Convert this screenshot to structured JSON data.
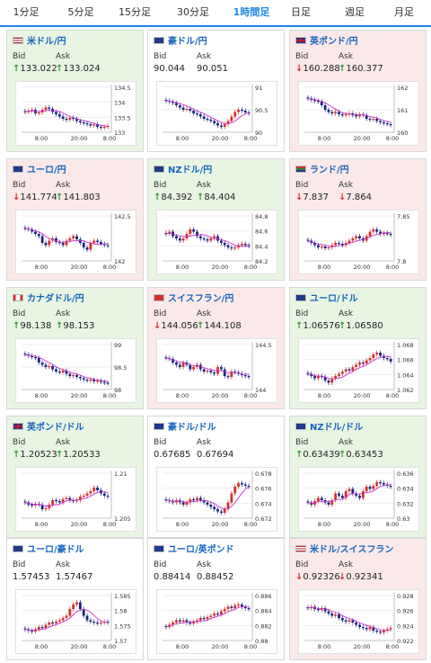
{
  "tabs": [
    {
      "label": "1分足",
      "active": false
    },
    {
      "label": "5分足",
      "active": false
    },
    {
      "label": "15分足",
      "active": false
    },
    {
      "label": "30分足",
      "active": false
    },
    {
      "label": "1時間足",
      "active": true
    },
    {
      "label": "日足",
      "active": false
    },
    {
      "label": "週足",
      "active": false
    },
    {
      "label": "月足",
      "active": false
    }
  ],
  "labels": {
    "bid": "Bid",
    "ask": "Ask"
  },
  "colors": {
    "up": "#2e9e2e",
    "down": "#d32f2f",
    "accent": "#1e88e5",
    "ma": "#cc33cc"
  },
  "pairs": [
    {
      "name": "米ドル/円",
      "flag": "flag-us-icon",
      "trend": "up",
      "bid_dir": "up",
      "bid": "133.022",
      "ask_dir": "up",
      "ask": "133.024",
      "yticks": [
        "134.5",
        "134",
        "133.5",
        "133"
      ],
      "xticks": [
        "8:00",
        "20:00",
        "8:00"
      ],
      "series": [
        0.45,
        0.48,
        0.5,
        0.42,
        0.44,
        0.5,
        0.55,
        0.52,
        0.45,
        0.4,
        0.35,
        0.3,
        0.28,
        0.32,
        0.3,
        0.25,
        0.22,
        0.2,
        0.18,
        0.15,
        0.17,
        0.12,
        0.1,
        0.12,
        0.14
      ]
    },
    {
      "name": "豪ドル/円",
      "flag": "flag-au-icon",
      "trend": "flat",
      "bid_dir": "",
      "bid": "90.044",
      "ask_dir": "",
      "ask": "90.051",
      "yticks": [
        "91",
        "90.5",
        "90"
      ],
      "xticks": [
        "8:00",
        "20:00",
        "8:00"
      ],
      "series": [
        0.7,
        0.68,
        0.65,
        0.6,
        0.55,
        0.5,
        0.52,
        0.48,
        0.42,
        0.4,
        0.35,
        0.3,
        0.28,
        0.25,
        0.2,
        0.15,
        0.12,
        0.18,
        0.25,
        0.35,
        0.45,
        0.5,
        0.48,
        0.44,
        0.42
      ]
    },
    {
      "name": "英ポンド/円",
      "flag": "flag-gb-icon",
      "trend": "down",
      "bid_dir": "down",
      "bid": "160.288",
      "ask_dir": "up",
      "ask": "160.377",
      "yticks": [
        "162",
        "161",
        "160"
      ],
      "xticks": [
        "8:00",
        "20:00",
        "8:00"
      ],
      "series": [
        0.75,
        0.72,
        0.7,
        0.68,
        0.6,
        0.5,
        0.45,
        0.42,
        0.45,
        0.4,
        0.38,
        0.4,
        0.42,
        0.38,
        0.35,
        0.4,
        0.38,
        0.3,
        0.28,
        0.3,
        0.25,
        0.22,
        0.2,
        0.18,
        0.16
      ]
    },
    {
      "name": "ユーロ/円",
      "flag": "flag-eu-icon",
      "trend": "down",
      "bid_dir": "down",
      "bid": "141.774",
      "ask_dir": "up",
      "ask": "141.803",
      "yticks": [
        "142.5",
        "142"
      ],
      "xticks": [
        "8:00",
        "20:00",
        "8:00"
      ],
      "series": [
        0.72,
        0.7,
        0.65,
        0.6,
        0.55,
        0.4,
        0.35,
        0.45,
        0.5,
        0.42,
        0.4,
        0.35,
        0.45,
        0.5,
        0.55,
        0.48,
        0.4,
        0.3,
        0.25,
        0.4,
        0.45,
        0.42,
        0.38,
        0.35,
        0.33
      ]
    },
    {
      "name": "NZドル/円",
      "flag": "flag-nz-icon",
      "trend": "up",
      "bid_dir": "up",
      "bid": "84.392",
      "ask_dir": "up",
      "ask": "84.404",
      "yticks": [
        "84.8",
        "84.6",
        "84.4",
        "84.2"
      ],
      "xticks": [
        "8:00",
        "20:00",
        "8:00"
      ],
      "series": [
        0.6,
        0.65,
        0.55,
        0.5,
        0.45,
        0.5,
        0.6,
        0.7,
        0.65,
        0.55,
        0.5,
        0.48,
        0.45,
        0.5,
        0.55,
        0.45,
        0.4,
        0.35,
        0.3,
        0.28,
        0.3,
        0.35,
        0.38,
        0.35,
        0.33
      ]
    },
    {
      "name": "ランド/円",
      "flag": "flag-za-icon",
      "trend": "down",
      "bid_dir": "down",
      "bid": "7.837",
      "ask_dir": "down",
      "ask": "7.864",
      "yticks": [
        "7.85",
        "7.8"
      ],
      "xticks": [
        "8:00",
        "20:00",
        "8:00"
      ],
      "series": [
        0.45,
        0.4,
        0.35,
        0.3,
        0.32,
        0.28,
        0.3,
        0.35,
        0.4,
        0.38,
        0.35,
        0.4,
        0.45,
        0.5,
        0.55,
        0.5,
        0.45,
        0.55,
        0.65,
        0.7,
        0.65,
        0.6,
        0.62,
        0.6,
        0.58
      ]
    },
    {
      "name": "カナダドル/円",
      "flag": "flag-ca-icon",
      "trend": "up",
      "bid_dir": "up",
      "bid": "98.138",
      "ask_dir": "up",
      "ask": "98.153",
      "yticks": [
        "99",
        "98.5",
        "98"
      ],
      "xticks": [
        "8:00",
        "20:00",
        "8:00"
      ],
      "series": [
        0.78,
        0.75,
        0.72,
        0.7,
        0.6,
        0.55,
        0.5,
        0.52,
        0.45,
        0.4,
        0.38,
        0.42,
        0.35,
        0.3,
        0.32,
        0.28,
        0.25,
        0.22,
        0.2,
        0.22,
        0.18,
        0.2,
        0.17,
        0.15,
        0.14
      ]
    },
    {
      "name": "スイスフラン/円",
      "flag": "flag-ch-icon",
      "trend": "down",
      "bid_dir": "down",
      "bid": "144.056",
      "ask_dir": "up",
      "ask": "144.108",
      "yticks": [
        "144.5",
        "144"
      ],
      "xticks": [
        "8:00",
        "20:00",
        "8:00"
      ],
      "series": [
        0.7,
        0.68,
        0.6,
        0.55,
        0.5,
        0.6,
        0.55,
        0.45,
        0.5,
        0.55,
        0.45,
        0.4,
        0.42,
        0.38,
        0.35,
        0.5,
        0.45,
        0.3,
        0.28,
        0.4,
        0.38,
        0.35,
        0.32,
        0.3,
        0.28
      ]
    },
    {
      "name": "ユーロ/ドル",
      "flag": "flag-eu-icon",
      "trend": "up",
      "bid_dir": "up",
      "bid": "1.06576",
      "ask_dir": "up",
      "ask": "1.06580",
      "yticks": [
        "1.068",
        "1.066",
        "1.064",
        "1.062"
      ],
      "xticks": [
        "8:00",
        "20:00",
        "8:00"
      ],
      "series": [
        0.35,
        0.3,
        0.25,
        0.3,
        0.28,
        0.2,
        0.15,
        0.25,
        0.3,
        0.35,
        0.4,
        0.45,
        0.42,
        0.5,
        0.55,
        0.6,
        0.58,
        0.65,
        0.7,
        0.78,
        0.82,
        0.75,
        0.7,
        0.68,
        0.62
      ]
    },
    {
      "name": "英ポンド/ドル",
      "flag": "flag-gb-icon",
      "trend": "up",
      "bid_dir": "up",
      "bid": "1.20523",
      "ask_dir": "up",
      "ask": "1.20533",
      "yticks": [
        "1.21",
        "1.205"
      ],
      "xticks": [
        "8:00",
        "20:00",
        "8:00"
      ],
      "series": [
        0.35,
        0.3,
        0.28,
        0.32,
        0.3,
        0.2,
        0.22,
        0.3,
        0.4,
        0.38,
        0.35,
        0.42,
        0.45,
        0.4,
        0.38,
        0.4,
        0.48,
        0.5,
        0.55,
        0.6,
        0.68,
        0.62,
        0.55,
        0.5,
        0.48
      ]
    },
    {
      "name": "豪ドル/ドル",
      "flag": "flag-au-icon",
      "trend": "flat",
      "bid_dir": "",
      "bid": "0.67685",
      "ask_dir": "",
      "ask": "0.67694",
      "yticks": [
        "0.678",
        "0.676",
        "0.674",
        "0.672"
      ],
      "xticks": [
        "8:00",
        "20:00",
        "8:00"
      ],
      "series": [
        0.4,
        0.38,
        0.35,
        0.4,
        0.35,
        0.3,
        0.35,
        0.42,
        0.4,
        0.45,
        0.4,
        0.35,
        0.3,
        0.25,
        0.2,
        0.15,
        0.12,
        0.2,
        0.35,
        0.55,
        0.7,
        0.78,
        0.75,
        0.72,
        0.7
      ]
    },
    {
      "name": "NZドル/ドル",
      "flag": "flag-nz-icon",
      "trend": "up",
      "bid_dir": "up",
      "bid": "0.63439",
      "ask_dir": "up",
      "ask": "0.63453",
      "yticks": [
        "0.636",
        "0.634",
        "0.632",
        "0.63"
      ],
      "xticks": [
        "8:00",
        "20:00",
        "8:00"
      ],
      "series": [
        0.35,
        0.3,
        0.38,
        0.45,
        0.4,
        0.35,
        0.3,
        0.4,
        0.55,
        0.5,
        0.45,
        0.6,
        0.65,
        0.55,
        0.5,
        0.45,
        0.6,
        0.7,
        0.65,
        0.72,
        0.8,
        0.78,
        0.75,
        0.72,
        0.7
      ]
    },
    {
      "name": "ユーロ/豪ドル",
      "flag": "flag-eu-icon",
      "trend": "flat",
      "bid_dir": "",
      "bid": "1.57453",
      "ask_dir": "",
      "ask": "1.57467",
      "yticks": [
        "1.585",
        "1.58",
        "1.575",
        "1.57"
      ],
      "xticks": [
        "8:00",
        "20:00",
        "8:00"
      ],
      "series": [
        0.25,
        0.22,
        0.2,
        0.25,
        0.3,
        0.28,
        0.35,
        0.4,
        0.38,
        0.42,
        0.45,
        0.5,
        0.55,
        0.7,
        0.8,
        0.85,
        0.7,
        0.55,
        0.45,
        0.42,
        0.4,
        0.38,
        0.4,
        0.42,
        0.4
      ]
    },
    {
      "name": "ユーロ/英ポンド",
      "flag": "flag-eu-icon",
      "trend": "flat",
      "bid_dir": "",
      "bid": "0.88414",
      "ask_dir": "",
      "ask": "0.88452",
      "yticks": [
        "0.886",
        "0.884",
        "0.882",
        "0.88"
      ],
      "xticks": [
        "8:00",
        "20:00",
        "8:00"
      ],
      "series": [
        0.3,
        0.35,
        0.4,
        0.45,
        0.42,
        0.45,
        0.4,
        0.38,
        0.42,
        0.45,
        0.5,
        0.48,
        0.52,
        0.55,
        0.6,
        0.58,
        0.65,
        0.7,
        0.75,
        0.72,
        0.78,
        0.8,
        0.75,
        0.72,
        0.7
      ]
    },
    {
      "name": "米ドル/スイスフラン",
      "flag": "flag-us-icon",
      "trend": "down",
      "bid_dir": "down",
      "bid": "0.92326",
      "ask_dir": "down",
      "ask": "0.92341",
      "yticks": [
        "0.928",
        "0.926",
        "0.924",
        "0.922"
      ],
      "xticks": [
        "8:00",
        "20:00",
        "8:00"
      ],
      "series": [
        0.72,
        0.75,
        0.7,
        0.68,
        0.72,
        0.65,
        0.6,
        0.55,
        0.58,
        0.5,
        0.45,
        0.42,
        0.45,
        0.4,
        0.35,
        0.3,
        0.28,
        0.25,
        0.3,
        0.22,
        0.2,
        0.18,
        0.22,
        0.25,
        0.28
      ]
    }
  ]
}
